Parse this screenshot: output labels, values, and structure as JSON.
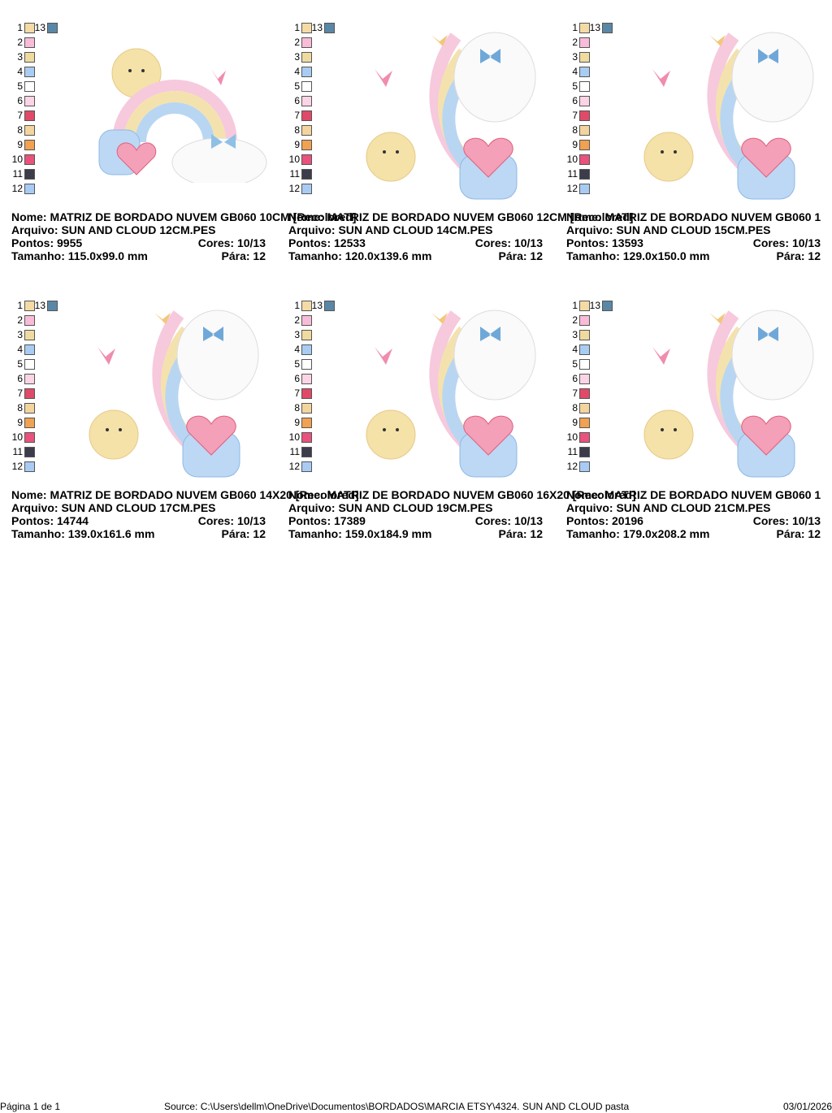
{
  "palette": [
    {
      "label": "1",
      "color": "#f4dba6"
    },
    {
      "label": "2",
      "color": "#f8bcd8"
    },
    {
      "label": "3",
      "color": "#efdba0"
    },
    {
      "label": "4",
      "color": "#a9cdf2"
    },
    {
      "label": "5",
      "color": "#ffffff"
    },
    {
      "label": "6",
      "color": "#fbd5e5"
    },
    {
      "label": "7",
      "color": "#e04a68"
    },
    {
      "label": "8",
      "color": "#f2d59e"
    },
    {
      "label": "9",
      "color": "#f0a152"
    },
    {
      "label": "10",
      "color": "#e8527c"
    },
    {
      "label": "11",
      "color": "#3c3c4a"
    },
    {
      "label": "12",
      "color": "#a8cbf4"
    },
    {
      "label": "13",
      "color": "#5a87a6"
    }
  ],
  "labels": {
    "name": "Nome:",
    "file": "Arquivo:",
    "stitches": "Pontos:",
    "colors": "Cores:",
    "size": "Tamanho:",
    "stops": "Pára:"
  },
  "cards": [
    {
      "name": "MATRIZ DE BORDADO NUVEM GB060 10CM [Recolored]",
      "file": "SUN AND CLOUD 12CM.PES",
      "stitches": "9955",
      "colors": "10/13",
      "size": "115.0x99.0 mm",
      "stops": "12"
    },
    {
      "name": "MATRIZ DE BORDADO NUVEM GB060 12CM [Recolored]",
      "file": "SUN AND CLOUD 14CM.PES",
      "stitches": "12533",
      "colors": "10/13",
      "size": "120.0x139.6 mm",
      "stops": "12"
    },
    {
      "name": "MATRIZ DE BORDADO NUVEM GB060 1",
      "file": "SUN AND CLOUD 15CM.PES",
      "stitches": "13593",
      "colors": "10/13",
      "size": "129.0x150.0 mm",
      "stops": "12"
    },
    {
      "name": "MATRIZ DE BORDADO NUVEM GB060 14X20 [Recolored]",
      "file": "SUN AND CLOUD 17CM.PES",
      "stitches": "14744",
      "colors": "10/13",
      "size": "139.0x161.6 mm",
      "stops": "12"
    },
    {
      "name": "MATRIZ DE BORDADO NUVEM GB060 16X20 [Recolored]",
      "file": "SUN AND CLOUD 19CM.PES",
      "stitches": "17389",
      "colors": "10/13",
      "size": "159.0x184.9 mm",
      "stops": "12"
    },
    {
      "name": "MATRIZ DE BORDADO NUVEM GB060 1",
      "file": "SUN AND CLOUD 21CM.PES",
      "stitches": "20196",
      "colors": "10/13",
      "size": "179.0x208.2 mm",
      "stops": "12"
    }
  ],
  "footer": {
    "page": "Página 1 de 1",
    "source": "Source: C:\\Users\\dellm\\OneDrive\\Documentos\\BORDADOS\\MARCIA ETSY\\4324. SUN AND CLOUD pasta",
    "date": "03/01/2026"
  }
}
